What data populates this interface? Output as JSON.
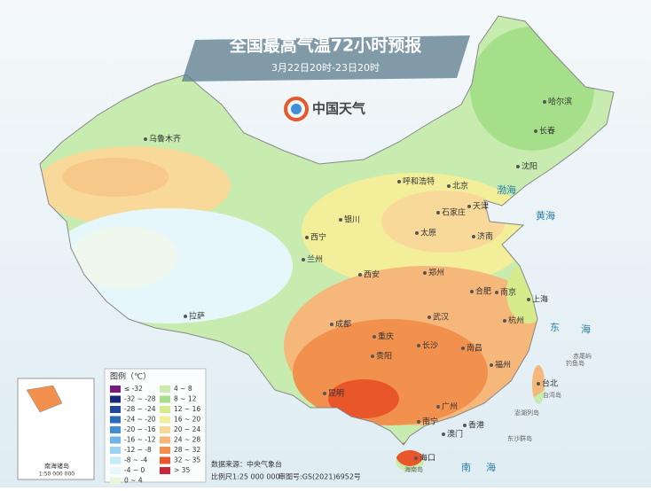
{
  "header": {
    "title": "全国最高气温72小时预报",
    "subtitle": "3月22日20时-23日20时",
    "logo": "中国天气"
  },
  "cities": [
    "乌鲁木齐",
    "哈尔滨",
    "长春",
    "沈阳",
    "呼和浩特",
    "北京",
    "天津",
    "石家庄",
    "银川",
    "太原",
    "济南",
    "西宁",
    "兰州",
    "郑州",
    "西安",
    "合肥",
    "南京",
    "上海",
    "拉萨",
    "成都",
    "武汉",
    "杭州",
    "重庆",
    "长沙",
    "南昌",
    "贵阳",
    "福州",
    "昆明",
    "台北",
    "南宁",
    "广州",
    "香港",
    "澳门",
    "海口"
  ],
  "seas": [
    "渤海",
    "黄海",
    "东",
    "海",
    "南",
    "海"
  ],
  "islands": [
    "赤尾屿",
    "钓鱼岛",
    "台湾岛",
    "澎湖列岛",
    "东沙群岛",
    "海南岛"
  ],
  "inset": {
    "title": "南海诸岛",
    "scale": "1:50 000 000"
  },
  "legend": {
    "title": "图例（℃）",
    "items": [
      {
        "label": "≤ -32",
        "color": "#7b1a7e"
      },
      {
        "label": "-32 ~ -28",
        "color": "#1a2a7a"
      },
      {
        "label": "-28 ~ -24",
        "color": "#23479a"
      },
      {
        "label": "-24 ~ -20",
        "color": "#2e68b8"
      },
      {
        "label": "-20 ~ -16",
        "color": "#3f8ed6"
      },
      {
        "label": "-16 ~ -12",
        "color": "#6fb4e8"
      },
      {
        "label": "-12 ~ -8",
        "color": "#9ad4f2"
      },
      {
        "label": "-8 ~ -4",
        "color": "#c4ebf8"
      },
      {
        "label": "-4 ~ 0",
        "color": "#e6f7fb"
      },
      {
        "label": "0 ~ 4",
        "color": "#e8f7dc"
      },
      {
        "label": "4 ~ 8",
        "color": "#c8ecb0"
      },
      {
        "label": "8 ~ 12",
        "color": "#a6df8a"
      },
      {
        "label": "12 ~ 16",
        "color": "#d6ec8c"
      },
      {
        "label": "16 ~ 20",
        "color": "#f2ee9a"
      },
      {
        "label": "20 ~ 24",
        "color": "#f8d99a"
      },
      {
        "label": "24 ~ 28",
        "color": "#f6b77a"
      },
      {
        "label": "28 ~ 32",
        "color": "#f2904e"
      },
      {
        "label": "32 ~ 35",
        "color": "#e8562a"
      },
      {
        "label": "> 35",
        "color": "#c8283a"
      }
    ]
  },
  "footer": {
    "source": "数据来源：中央气象台",
    "scale": "比例尺1:25 000 000",
    "approval": "审图号:GS(2021)6952号"
  }
}
